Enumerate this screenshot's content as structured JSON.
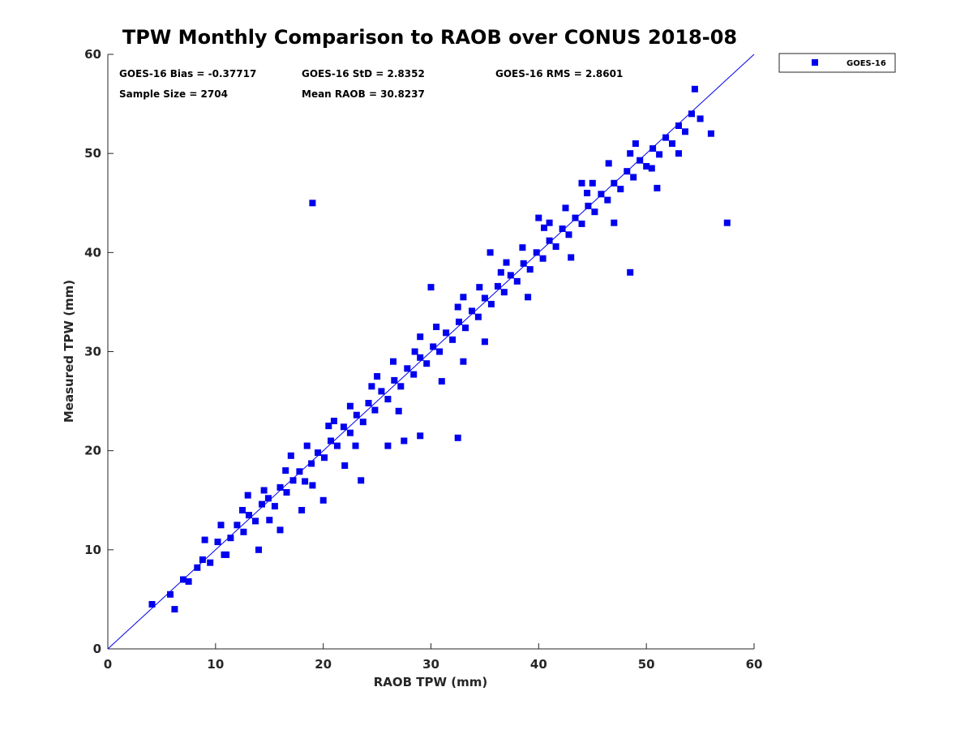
{
  "chart_data": {
    "type": "scatter",
    "title": "TPW Monthly Comparison to RAOB over CONUS 2018-08",
    "xlabel": "RAOB TPW (mm)",
    "ylabel": "Measured TPW (mm)",
    "xlim": [
      0,
      60
    ],
    "ylim": [
      0,
      60
    ],
    "xticks": [
      "0",
      "10",
      "20",
      "30",
      "40",
      "50",
      "60"
    ],
    "yticks": [
      "0",
      "10",
      "20",
      "30",
      "40",
      "50",
      "60"
    ],
    "grid": false,
    "legend_position": "outside top-right",
    "marker_color": "#0000ee",
    "reference_line": {
      "label": "1:1 line",
      "from": [
        0,
        0
      ],
      "to": [
        60,
        60
      ]
    },
    "stats": {
      "bias": "GOES-16 Bias = -0.37717",
      "std": "GOES-16 StD = 2.8352",
      "rms": "GOES-16 RMS = 2.8601",
      "sample_size": "Sample Size = 2704",
      "mean_raob": "Mean RAOB = 30.8237"
    },
    "series": [
      {
        "name": "GOES-16",
        "x": [
          4.1,
          6.2,
          5.8,
          7.0,
          7.5,
          8.3,
          8.8,
          9.5,
          10.2,
          10.8,
          11.4,
          12.0,
          12.6,
          13.1,
          13.7,
          14.3,
          14.9,
          15.5,
          16.0,
          16.6,
          17.2,
          17.8,
          18.3,
          18.9,
          19.5,
          20.1,
          20.7,
          21.3,
          21.9,
          22.5,
          23.1,
          23.7,
          24.2,
          24.8,
          25.4,
          26.0,
          26.6,
          27.2,
          27.8,
          28.4,
          29.0,
          29.6,
          30.2,
          30.8,
          31.4,
          32.0,
          32.6,
          33.2,
          33.8,
          34.4,
          35.0,
          35.6,
          36.2,
          36.8,
          37.4,
          38.0,
          38.6,
          39.2,
          39.8,
          40.4,
          41.0,
          41.6,
          42.2,
          42.8,
          43.4,
          44.0,
          44.6,
          45.2,
          45.8,
          46.4,
          47.0,
          47.6,
          48.2,
          48.8,
          49.4,
          50.0,
          50.6,
          51.2,
          51.8,
          52.4,
          53.0,
          53.6,
          54.2,
          55.0,
          56.0,
          9.0,
          11.0,
          13.0,
          15.0,
          17.0,
          19.0,
          21.0,
          23.0,
          25.0,
          27.0,
          29.0,
          31.0,
          33.0,
          35.0,
          37.0,
          39.0,
          41.0,
          43.0,
          45.0,
          47.0,
          49.0,
          51.0,
          53.0,
          12.5,
          16.5,
          20.5,
          24.5,
          28.5,
          32.5,
          36.5,
          40.5,
          44.5,
          48.5,
          10.5,
          14.5,
          18.5,
          22.5,
          26.5,
          30.5,
          34.5,
          38.5,
          42.5,
          46.5,
          50.5,
          19.0,
          57.5,
          48.5,
          33.0,
          32.5,
          29.0,
          26.0,
          22.0,
          18.0,
          14.0,
          30.0,
          35.5,
          40.0,
          44.0,
          27.5,
          23.5,
          20.0,
          16.0,
          54.5
        ],
        "y": [
          4.5,
          4.0,
          5.5,
          7.0,
          6.8,
          8.2,
          9.0,
          8.7,
          10.8,
          9.5,
          11.2,
          12.5,
          11.8,
          13.5,
          12.9,
          14.6,
          15.2,
          14.4,
          16.3,
          15.8,
          17.0,
          17.9,
          16.9,
          18.7,
          19.8,
          19.3,
          21.0,
          20.5,
          22.4,
          21.8,
          23.6,
          22.9,
          24.8,
          24.1,
          26.0,
          25.2,
          27.1,
          26.5,
          28.3,
          27.7,
          29.4,
          28.8,
          30.5,
          30.0,
          31.9,
          31.2,
          33.0,
          32.4,
          34.1,
          33.5,
          35.4,
          34.8,
          36.6,
          36.0,
          37.7,
          37.1,
          38.9,
          38.3,
          40.0,
          39.4,
          41.2,
          40.6,
          42.4,
          41.8,
          43.5,
          42.9,
          44.7,
          44.1,
          45.9,
          45.3,
          47.0,
          46.4,
          48.2,
          47.6,
          49.3,
          48.7,
          50.5,
          49.9,
          51.6,
          51.0,
          52.8,
          52.2,
          54.0,
          53.5,
          52.0,
          11.0,
          9.5,
          15.5,
          13.0,
          19.5,
          16.5,
          23.0,
          20.5,
          27.5,
          24.0,
          31.5,
          27.0,
          35.5,
          31.0,
          39.0,
          35.5,
          43.0,
          39.5,
          47.0,
          43.0,
          51.0,
          46.5,
          50.0,
          14.0,
          18.0,
          22.5,
          26.5,
          30.0,
          34.5,
          38.0,
          42.5,
          46.0,
          50.0,
          12.5,
          16.0,
          20.5,
          24.5,
          29.0,
          32.5,
          36.5,
          40.5,
          44.5,
          49.0,
          48.5,
          45.0,
          43.0,
          38.0,
          29.0,
          21.3,
          21.5,
          20.5,
          18.5,
          14.0,
          10.0,
          36.5,
          40.0,
          43.5,
          47.0,
          21.0,
          17.0,
          15.0,
          12.0,
          56.5
        ]
      }
    ]
  }
}
